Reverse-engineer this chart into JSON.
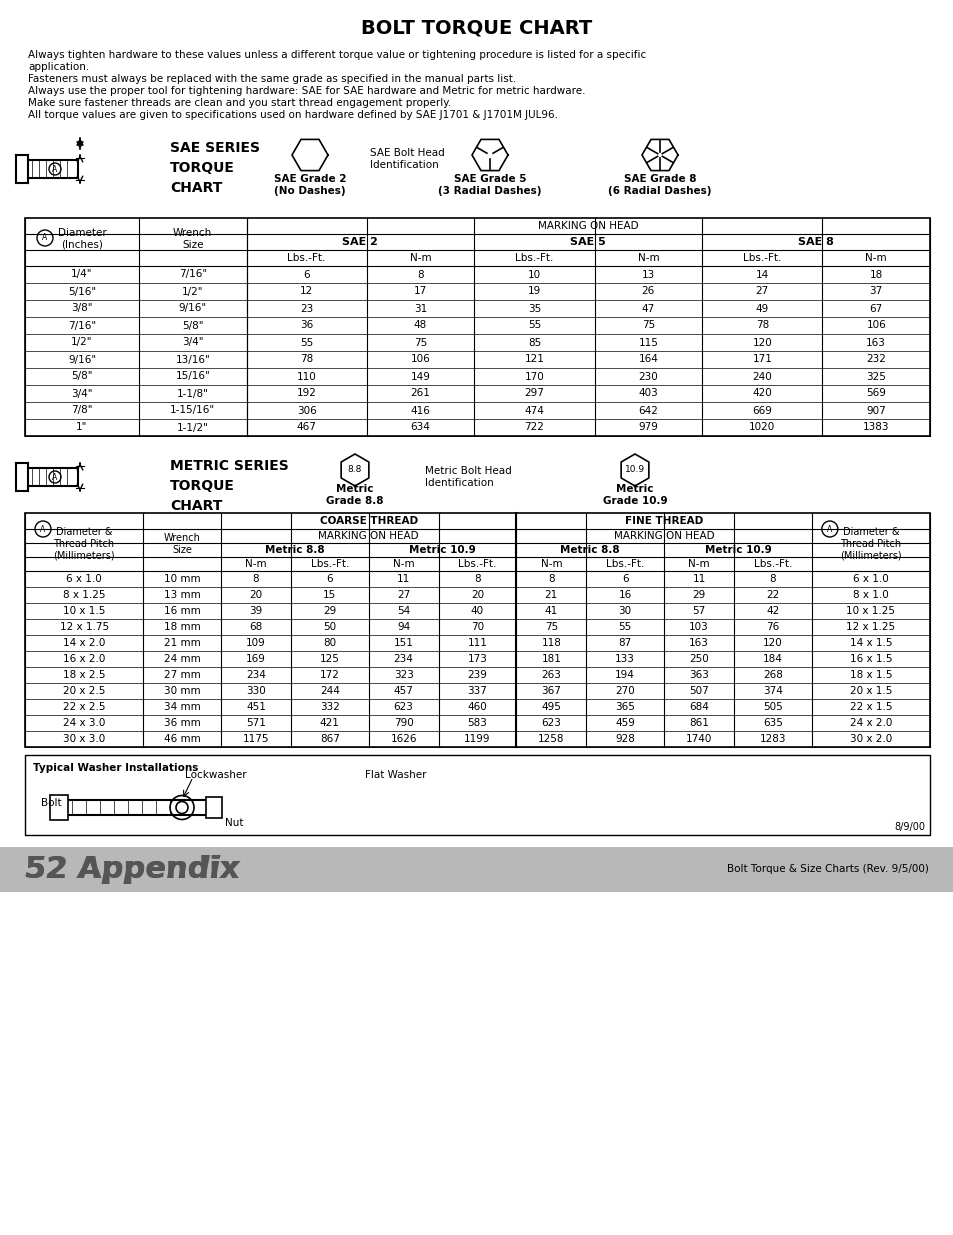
{
  "title": "BOLT TORQUE CHART",
  "intro_line1": "Always tighten hardware to these values unless a different torque value or tightening procedure is listed for a specific",
  "intro_line1b": "application.",
  "intro_line2": "Fasteners must always be replaced with the same grade as specified in the manual parts list.",
  "intro_line3": "Always use the proper tool for tightening hardware: SAE for SAE hardware and Metric for metric hardware.",
  "intro_line4": "Make sure fastener threads are clean and you start thread engagement properly.",
  "intro_line5": "All torque values are given to specifications used on hardware defined by SAE J1701 & J1701M JUL96.",
  "sae_section_title": "SAE SERIES\nTORQUE\nCHART",
  "sae_bolt_head_label": "SAE Bolt Head\nIdentification",
  "sae_grade2_label": "SAE Grade 2\n(No Dashes)",
  "sae_grade5_label": "SAE Grade 5\n(3 Radial Dashes)",
  "sae_grade8_label": "SAE Grade 8\n(6 Radial Dashes)",
  "sae_col_a_label": "Diameter\n(Inches)",
  "sae_col_b_label": "Wrench\nSize",
  "sae_marking_head": "MARKING ON HEAD",
  "sae_col_sae2": "SAE 2",
  "sae_col_sae5": "SAE 5",
  "sae_col_sae8": "SAE 8",
  "sae_subheader": [
    "Lbs.-Ft.",
    "N-m",
    "Lbs.-Ft.",
    "N-m",
    "Lbs.-Ft.",
    "N-m"
  ],
  "sae_rows": [
    [
      "1/4\"",
      "7/16\"",
      "6",
      "8",
      "10",
      "13",
      "14",
      "18"
    ],
    [
      "5/16\"",
      "1/2\"",
      "12",
      "17",
      "19",
      "26",
      "27",
      "37"
    ],
    [
      "3/8\"",
      "9/16\"",
      "23",
      "31",
      "35",
      "47",
      "49",
      "67"
    ],
    [
      "7/16\"",
      "5/8\"",
      "36",
      "48",
      "55",
      "75",
      "78",
      "106"
    ],
    [
      "1/2\"",
      "3/4\"",
      "55",
      "75",
      "85",
      "115",
      "120",
      "163"
    ],
    [
      "9/16\"",
      "13/16\"",
      "78",
      "106",
      "121",
      "164",
      "171",
      "232"
    ],
    [
      "5/8\"",
      "15/16\"",
      "110",
      "149",
      "170",
      "230",
      "240",
      "325"
    ],
    [
      "3/4\"",
      "1-1/8\"",
      "192",
      "261",
      "297",
      "403",
      "420",
      "569"
    ],
    [
      "7/8\"",
      "1-15/16\"",
      "306",
      "416",
      "474",
      "642",
      "669",
      "907"
    ],
    [
      "1\"",
      "1-1/2\"",
      "467",
      "634",
      "722",
      "979",
      "1020",
      "1383"
    ]
  ],
  "metric_section_title": "METRIC SERIES\nTORQUE\nCHART",
  "metric_bolt_head_label": "Metric Bolt Head\nIdentification",
  "metric_grade88_label": "Metric\nGrade 8.8",
  "metric_grade109_label": "Metric\nGrade 10.9",
  "metric_col1": "Diameter &\nThread Pitch\n(Millimeters)",
  "metric_col2": "Wrench\nSize",
  "metric_coarse": "COARSE THREAD",
  "metric_fine": "FINE THREAD",
  "metric_marking": "MARKING ON HEAD",
  "metric_88": "Metric 8.8",
  "metric_109": "Metric 10.9",
  "metric_subheader": [
    "N-m",
    "Lbs.-Ft.",
    "N-m",
    "Lbs.-Ft.",
    "N-m",
    "Lbs.-Ft.",
    "N-m",
    "Lbs.-Ft."
  ],
  "metric_rows": [
    [
      "6 x 1.0",
      "10 mm",
      "8",
      "6",
      "11",
      "8",
      "8",
      "6",
      "11",
      "8",
      "6 x 1.0"
    ],
    [
      "8 x 1.25",
      "13 mm",
      "20",
      "15",
      "27",
      "20",
      "21",
      "16",
      "29",
      "22",
      "8 x 1.0"
    ],
    [
      "10 x 1.5",
      "16 mm",
      "39",
      "29",
      "54",
      "40",
      "41",
      "30",
      "57",
      "42",
      "10 x 1.25"
    ],
    [
      "12 x 1.75",
      "18 mm",
      "68",
      "50",
      "94",
      "70",
      "75",
      "55",
      "103",
      "76",
      "12 x 1.25"
    ],
    [
      "14 x 2.0",
      "21 mm",
      "109",
      "80",
      "151",
      "111",
      "118",
      "87",
      "163",
      "120",
      "14 x 1.5"
    ],
    [
      "16 x 2.0",
      "24 mm",
      "169",
      "125",
      "234",
      "173",
      "181",
      "133",
      "250",
      "184",
      "16 x 1.5"
    ],
    [
      "18 x 2.5",
      "27 mm",
      "234",
      "172",
      "323",
      "239",
      "263",
      "194",
      "363",
      "268",
      "18 x 1.5"
    ],
    [
      "20 x 2.5",
      "30 mm",
      "330",
      "244",
      "457",
      "337",
      "367",
      "270",
      "507",
      "374",
      "20 x 1.5"
    ],
    [
      "22 x 2.5",
      "34 mm",
      "451",
      "332",
      "623",
      "460",
      "495",
      "365",
      "684",
      "505",
      "22 x 1.5"
    ],
    [
      "24 x 3.0",
      "36 mm",
      "571",
      "421",
      "790",
      "583",
      "623",
      "459",
      "861",
      "635",
      "24 x 2.0"
    ],
    [
      "30 x 3.0",
      "46 mm",
      "1175",
      "867",
      "1626",
      "1199",
      "1258",
      "928",
      "1740",
      "1283",
      "30 x 2.0"
    ]
  ],
  "washer_label": "Typical Washer Installations",
  "lockwasher_label": "Lockwasher",
  "flat_washer_label": "Flat Washer",
  "bolt_label": "Bolt",
  "nut_label": "Nut",
  "date_label": "8/9/00",
  "footer_left": "52 Appendix",
  "footer_right": "Bolt Torque & Size Charts (Rev. 9/5/00)",
  "bg_color": "#ffffff",
  "footer_bg": "#aaaaaa"
}
